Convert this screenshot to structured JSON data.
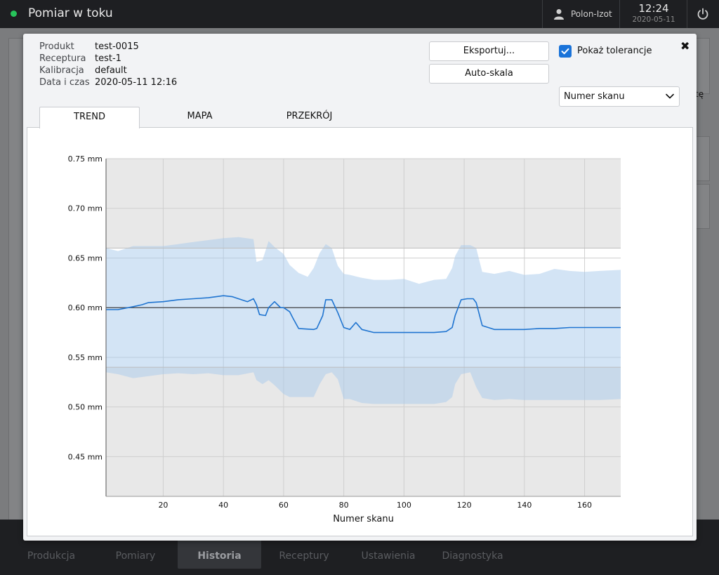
{
  "topbar": {
    "title": "Pomiar w toku",
    "status_color": "#27c35a",
    "user_icon": "user-icon",
    "user_name": "Polon-Izot",
    "time": "12:24",
    "date": "2020-05-11",
    "power_icon": "power-icon"
  },
  "background": {
    "edge_label": "tę"
  },
  "bottom_nav": {
    "items": [
      {
        "label": "Produkcja"
      },
      {
        "label": "Pomiary"
      },
      {
        "label": "Historia"
      },
      {
        "label": "Receptury"
      },
      {
        "label": "Ustawienia"
      },
      {
        "label": "Diagnostyka"
      }
    ],
    "active": "Historia"
  },
  "dialog": {
    "info": [
      {
        "key": "Produkt",
        "value": "test-0015"
      },
      {
        "key": "Receptura",
        "value": "test-1"
      },
      {
        "key": "Kalibracja",
        "value": "default"
      },
      {
        "key": "Data i czas",
        "value": "2020-05-11 12:16"
      }
    ],
    "export_label": "Eksportuj...",
    "autoscale_label": "Auto-skala",
    "show_tolerance_label": "Pokaż tolerancje",
    "show_tolerance_checked": true,
    "close_icon": "close-icon",
    "axis_select_value": "Numer skanu",
    "tabs": [
      {
        "label": "TREND",
        "active": true
      },
      {
        "label": "MAPA",
        "active": false
      },
      {
        "label": "PRZEKRÓJ",
        "active": false
      }
    ]
  },
  "chart_data": {
    "type": "area",
    "xlabel": "Numer skanu",
    "ylabel": "",
    "xlim": [
      1,
      172
    ],
    "ylim": [
      0.41,
      0.75
    ],
    "xticks": [
      20,
      40,
      60,
      80,
      100,
      120,
      140,
      160
    ],
    "yticks": [
      {
        "value": 0.45,
        "label": "0.45 mm"
      },
      {
        "value": 0.5,
        "label": "0.50 mm"
      },
      {
        "value": 0.55,
        "label": "0.55 mm"
      },
      {
        "value": 0.6,
        "label": "0.60 mm"
      },
      {
        "value": 0.65,
        "label": "0.65 mm"
      },
      {
        "value": 0.7,
        "label": "0.70 mm"
      },
      {
        "value": 0.75,
        "label": "0.75 mm"
      }
    ],
    "grid": true,
    "nominal": 0.6,
    "tolerance_upper": 0.66,
    "tolerance_lower": 0.54,
    "colors": {
      "mean_line": "#1f74d0",
      "band": "#a7c9ec",
      "nominal": "#333333",
      "out_of_tolerance": "#e8e8e8"
    },
    "series": [
      {
        "kind": "mean",
        "x": [
          1,
          5,
          10,
          13,
          15,
          20,
          25,
          30,
          35,
          40,
          43,
          45,
          48,
          50,
          51,
          52,
          54,
          55,
          57,
          58,
          59,
          60,
          62,
          63,
          65,
          70,
          71,
          73,
          74,
          76,
          78,
          80,
          82,
          84,
          86,
          90,
          95,
          100,
          105,
          110,
          114,
          116,
          117,
          119,
          121,
          123,
          124,
          126,
          130,
          135,
          140,
          145,
          150,
          155,
          160,
          165,
          172
        ],
        "y": [
          0.598,
          0.598,
          0.601,
          0.603,
          0.605,
          0.606,
          0.608,
          0.609,
          0.61,
          0.612,
          0.611,
          0.609,
          0.606,
          0.609,
          0.603,
          0.593,
          0.592,
          0.6,
          0.606,
          0.603,
          0.6,
          0.6,
          0.596,
          0.59,
          0.579,
          0.578,
          0.579,
          0.592,
          0.608,
          0.608,
          0.595,
          0.58,
          0.578,
          0.585,
          0.578,
          0.575,
          0.575,
          0.575,
          0.575,
          0.575,
          0.576,
          0.58,
          0.592,
          0.608,
          0.609,
          0.609,
          0.605,
          0.582,
          0.578,
          0.578,
          0.578,
          0.579,
          0.579,
          0.58,
          0.58,
          0.58,
          0.58
        ]
      },
      {
        "kind": "band_upper",
        "x": [
          1,
          5,
          10,
          20,
          25,
          30,
          35,
          40,
          45,
          50,
          51,
          53,
          55,
          57,
          60,
          62,
          65,
          68,
          70,
          72,
          74,
          76,
          78,
          80,
          82,
          86,
          90,
          95,
          100,
          105,
          110,
          114,
          116,
          117,
          119,
          122,
          124,
          126,
          130,
          135,
          140,
          145,
          150,
          155,
          160,
          165,
          172
        ],
        "y": [
          0.66,
          0.657,
          0.662,
          0.662,
          0.664,
          0.666,
          0.668,
          0.67,
          0.671,
          0.669,
          0.646,
          0.648,
          0.667,
          0.661,
          0.654,
          0.643,
          0.635,
          0.631,
          0.64,
          0.655,
          0.664,
          0.66,
          0.642,
          0.634,
          0.633,
          0.63,
          0.628,
          0.628,
          0.629,
          0.624,
          0.628,
          0.629,
          0.64,
          0.652,
          0.663,
          0.663,
          0.66,
          0.636,
          0.634,
          0.637,
          0.633,
          0.634,
          0.639,
          0.637,
          0.636,
          0.637,
          0.638
        ]
      },
      {
        "kind": "band_lower",
        "x": [
          1,
          5,
          10,
          20,
          25,
          30,
          35,
          40,
          45,
          50,
          51,
          53,
          55,
          57,
          60,
          62,
          65,
          70,
          72,
          74,
          76,
          78,
          80,
          82,
          86,
          90,
          95,
          100,
          105,
          110,
          114,
          116,
          117,
          119,
          122,
          124,
          126,
          130,
          135,
          140,
          145,
          150,
          155,
          160,
          165,
          172
        ],
        "y": [
          0.535,
          0.533,
          0.529,
          0.533,
          0.534,
          0.533,
          0.534,
          0.532,
          0.532,
          0.535,
          0.527,
          0.523,
          0.527,
          0.522,
          0.513,
          0.51,
          0.51,
          0.51,
          0.523,
          0.533,
          0.535,
          0.528,
          0.508,
          0.508,
          0.504,
          0.503,
          0.503,
          0.503,
          0.503,
          0.503,
          0.505,
          0.51,
          0.523,
          0.533,
          0.535,
          0.52,
          0.509,
          0.507,
          0.508,
          0.507,
          0.507,
          0.507,
          0.507,
          0.507,
          0.507,
          0.508
        ]
      }
    ]
  }
}
